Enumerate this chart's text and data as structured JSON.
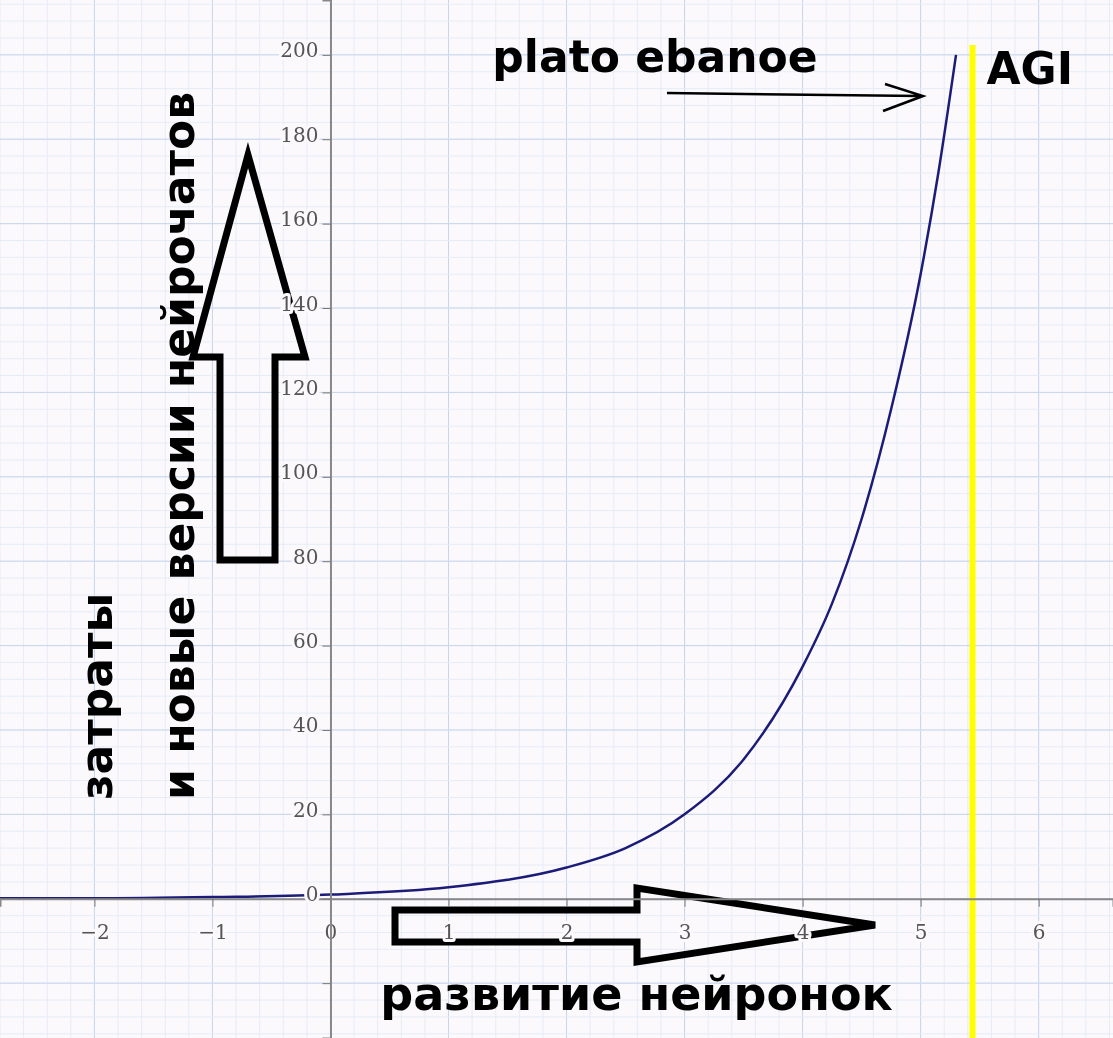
{
  "chart_data": {
    "type": "line",
    "xlabel": "развитие нейронок",
    "ylabel": "затраты\nи новые версии нейрочатов",
    "x": [
      -2.8,
      -2,
      -1,
      0,
      1,
      2,
      2.5,
      3,
      3.5,
      4,
      4.25,
      4.5,
      4.75,
      5,
      5.15,
      5.3
    ],
    "series": [
      {
        "color": "#1c1c78",
        "values": [
          0.1,
          0.1,
          0.4,
          1,
          2.7,
          7.4,
          12,
          20,
          33,
          55,
          70,
          90,
          116,
          148,
          172,
          200
        ]
      }
    ],
    "xlim": [
      -2.8,
      6.63
    ],
    "ylim": [
      -33,
      213
    ],
    "xticks": [
      -2,
      -1,
      0,
      1,
      2,
      3,
      4,
      5,
      6
    ],
    "yticks": [
      {
        "value": -20,
        "label": null
      },
      0,
      20,
      40,
      60,
      80,
      100,
      120,
      140,
      160,
      180,
      200
    ],
    "grid": true,
    "marker": "none",
    "line_style": "solid",
    "ref_lines": [
      {
        "axis": "x",
        "value": 5.44,
        "label": "AGI",
        "color": "#ffff00"
      }
    ],
    "annotations": [
      "plato ebanoe"
    ]
  }
}
